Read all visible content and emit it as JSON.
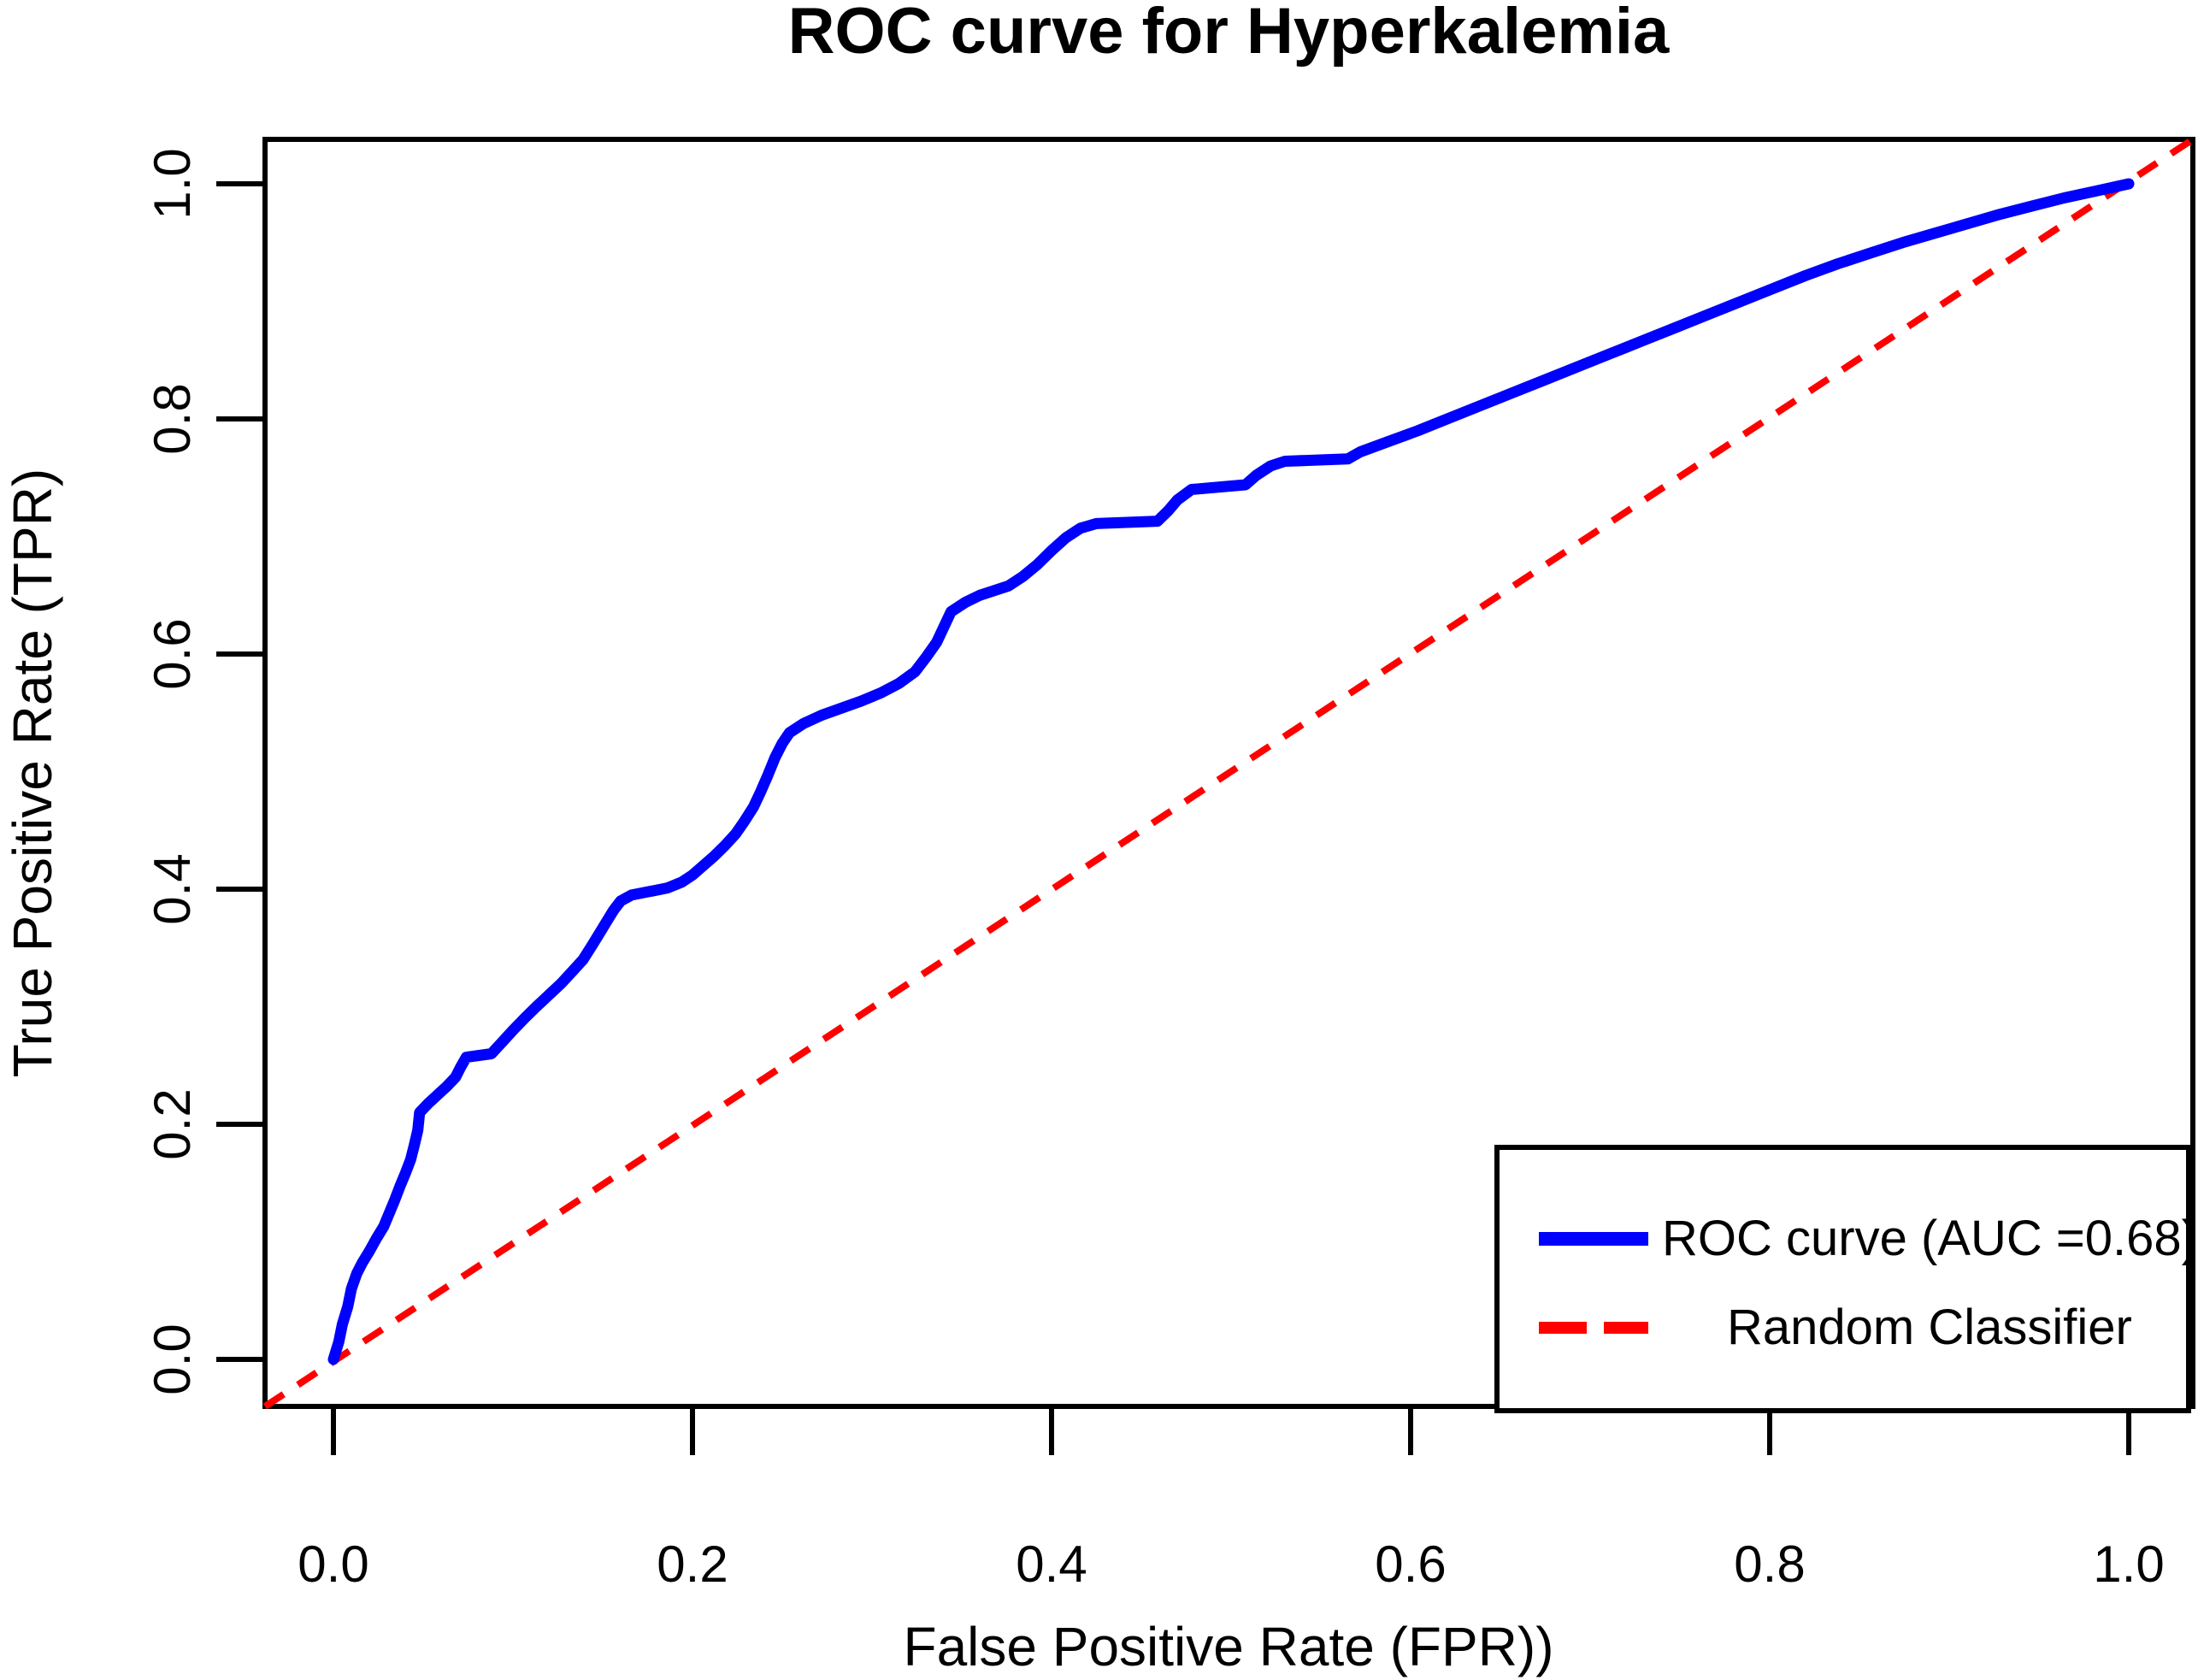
{
  "page": {
    "background_color": "#ffffff",
    "text_color": "#000000"
  },
  "chart_data": {
    "type": "line",
    "title": "ROC curve for Hyperkalemia",
    "xlabel": "False Positive Rate (FPR))",
    "ylabel": "True Positive Rate (TPR)",
    "xlim": [
      -0.038,
      1.036
    ],
    "ylim": [
      -0.04,
      1.038
    ],
    "grid": false,
    "x_tick_values": [
      0.0,
      0.2,
      0.4,
      0.6,
      0.8,
      1.0
    ],
    "x_tick_labels": [
      "0.0",
      "0.2",
      "0.4",
      "0.6",
      "0.8",
      "1.0"
    ],
    "y_tick_values": [
      0.0,
      0.2,
      0.4,
      0.6,
      0.8,
      1.0
    ],
    "y_tick_labels": [
      "0.0",
      "0.2",
      "0.4",
      "0.6",
      "0.8",
      "1.0"
    ],
    "legend": {
      "position": "bottom-right",
      "items": [
        {
          "label": "ROC curve (AUC =0.68)",
          "color": "#0000ff",
          "line_style": "solid"
        },
        {
          "label": "Random Classifier",
          "color": "#ff0000",
          "line_style": "dashed"
        }
      ]
    },
    "series": [
      {
        "name": "ROC curve (AUC =0.68)",
        "color": "#0000ff",
        "style": "solid",
        "auc": 0.68,
        "points": [
          [
            0,
            0
          ],
          [
            0.003,
            0.015
          ],
          [
            0.005,
            0.03
          ],
          [
            0.008,
            0.045
          ],
          [
            0.01,
            0.06
          ],
          [
            0.013,
            0.073
          ],
          [
            0.016,
            0.082
          ],
          [
            0.02,
            0.092
          ],
          [
            0.024,
            0.103
          ],
          [
            0.028,
            0.113
          ],
          [
            0.031,
            0.124
          ],
          [
            0.034,
            0.135
          ],
          [
            0.037,
            0.147
          ],
          [
            0.04,
            0.158
          ],
          [
            0.043,
            0.17
          ],
          [
            0.045,
            0.182
          ],
          [
            0.047,
            0.195
          ],
          [
            0.048,
            0.21
          ],
          [
            0.053,
            0.218
          ],
          [
            0.058,
            0.225
          ],
          [
            0.063,
            0.232
          ],
          [
            0.068,
            0.24
          ],
          [
            0.071,
            0.249
          ],
          [
            0.074,
            0.257
          ],
          [
            0.088,
            0.26
          ],
          [
            0.094,
            0.27
          ],
          [
            0.1,
            0.28
          ],
          [
            0.107,
            0.291
          ],
          [
            0.113,
            0.3
          ],
          [
            0.12,
            0.31
          ],
          [
            0.127,
            0.32
          ],
          [
            0.133,
            0.33
          ],
          [
            0.139,
            0.34
          ],
          [
            0.144,
            0.352
          ],
          [
            0.148,
            0.362
          ],
          [
            0.152,
            0.372
          ],
          [
            0.156,
            0.382
          ],
          [
            0.16,
            0.39
          ],
          [
            0.166,
            0.395
          ],
          [
            0.176,
            0.398
          ],
          [
            0.186,
            0.401
          ],
          [
            0.194,
            0.406
          ],
          [
            0.2,
            0.412
          ],
          [
            0.206,
            0.42
          ],
          [
            0.212,
            0.428
          ],
          [
            0.218,
            0.437
          ],
          [
            0.224,
            0.447
          ],
          [
            0.229,
            0.458
          ],
          [
            0.234,
            0.47
          ],
          [
            0.238,
            0.483
          ],
          [
            0.242,
            0.497
          ],
          [
            0.246,
            0.512
          ],
          [
            0.25,
            0.524
          ],
          [
            0.254,
            0.533
          ],
          [
            0.262,
            0.541
          ],
          [
            0.272,
            0.548
          ],
          [
            0.283,
            0.554
          ],
          [
            0.294,
            0.56
          ],
          [
            0.305,
            0.567
          ],
          [
            0.315,
            0.575
          ],
          [
            0.324,
            0.585
          ],
          [
            0.33,
            0.597
          ],
          [
            0.336,
            0.61
          ],
          [
            0.34,
            0.623
          ],
          [
            0.344,
            0.636
          ],
          [
            0.352,
            0.644
          ],
          [
            0.36,
            0.65
          ],
          [
            0.368,
            0.654
          ],
          [
            0.376,
            0.658
          ],
          [
            0.384,
            0.666
          ],
          [
            0.392,
            0.676
          ],
          [
            0.4,
            0.688
          ],
          [
            0.408,
            0.699
          ],
          [
            0.416,
            0.707
          ],
          [
            0.425,
            0.711
          ],
          [
            0.459,
            0.713
          ],
          [
            0.465,
            0.722
          ],
          [
            0.47,
            0.731
          ],
          [
            0.478,
            0.74
          ],
          [
            0.508,
            0.744
          ],
          [
            0.514,
            0.752
          ],
          [
            0.522,
            0.76
          ],
          [
            0.53,
            0.764
          ],
          [
            0.565,
            0.766
          ],
          [
            0.572,
            0.772
          ],
          [
            0.588,
            0.781
          ],
          [
            0.604,
            0.79
          ],
          [
            0.622,
            0.801
          ],
          [
            0.64,
            0.812
          ],
          [
            0.658,
            0.823
          ],
          [
            0.676,
            0.834
          ],
          [
            0.694,
            0.845
          ],
          [
            0.712,
            0.856
          ],
          [
            0.73,
            0.867
          ],
          [
            0.748,
            0.878
          ],
          [
            0.766,
            0.889
          ],
          [
            0.784,
            0.9
          ],
          [
            0.802,
            0.911
          ],
          [
            0.82,
            0.922
          ],
          [
            0.838,
            0.932
          ],
          [
            0.856,
            0.941
          ],
          [
            0.874,
            0.95
          ],
          [
            0.892,
            0.958
          ],
          [
            0.91,
            0.966
          ],
          [
            0.928,
            0.974
          ],
          [
            0.946,
            0.981
          ],
          [
            0.964,
            0.988
          ],
          [
            0.982,
            0.994
          ],
          [
            1,
            1
          ]
        ]
      },
      {
        "name": "Random Classifier",
        "color": "#ff0000",
        "style": "dashed",
        "points": [
          [
            0,
            0
          ],
          [
            1,
            1
          ]
        ]
      }
    ]
  }
}
